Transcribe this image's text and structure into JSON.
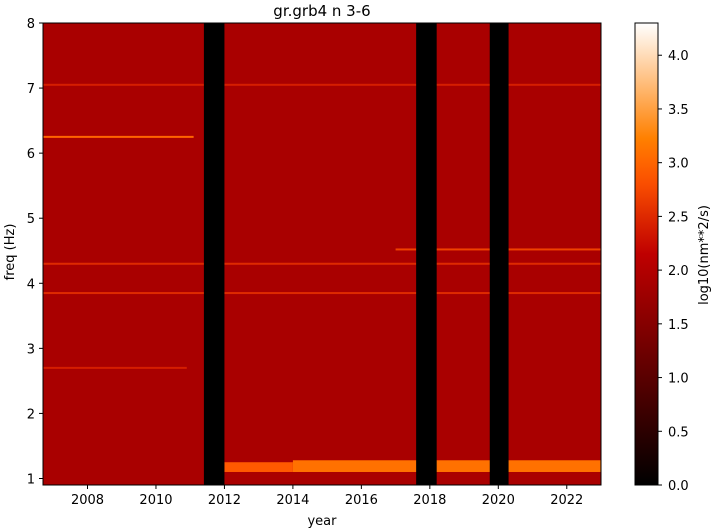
{
  "chart_data": {
    "type": "heatmap",
    "title": "gr.grb4 n 3-6",
    "xlabel": "year",
    "ylabel": "freq (Hz)",
    "xlim": [
      2006.7,
      2023.0
    ],
    "ylim": [
      0.9,
      8.0
    ],
    "x_ticks": [
      2008,
      2010,
      2012,
      2014,
      2016,
      2018,
      2020,
      2022
    ],
    "y_ticks": [
      1,
      2,
      3,
      4,
      5,
      6,
      7,
      8
    ],
    "colorbar": {
      "label": "log10(nm**2/s)",
      "range": [
        0.0,
        4.3
      ],
      "ticks": [
        0.0,
        0.5,
        1.0,
        1.5,
        2.0,
        2.5,
        3.0,
        3.5,
        4.0
      ],
      "colormap": "gist_heat",
      "colors": [
        "#000000",
        "#800000",
        "#ff8000",
        "#ffffff"
      ]
    },
    "background_level": 1.9,
    "data_gaps": [
      {
        "start": 2011.4,
        "end": 2012.0
      },
      {
        "start": 2017.6,
        "end": 2018.2
      },
      {
        "start": 2019.75,
        "end": 2020.3
      }
    ],
    "lines": [
      {
        "freq": 6.25,
        "start": 2006.7,
        "end": 2011.1,
        "level": 3.0
      },
      {
        "freq": 7.05,
        "start": 2006.7,
        "end": 2023.0,
        "level": 2.4
      },
      {
        "freq": 4.3,
        "start": 2006.7,
        "end": 2023.0,
        "level": 2.5
      },
      {
        "freq": 4.52,
        "start": 2017.0,
        "end": 2023.0,
        "level": 2.7
      },
      {
        "freq": 3.85,
        "start": 2006.7,
        "end": 2023.0,
        "level": 2.5
      },
      {
        "freq": 2.7,
        "start": 2006.7,
        "end": 2010.9,
        "level": 2.4
      }
    ],
    "bands": [
      {
        "fmin": 1.1,
        "fmax": 1.25,
        "start": 2012.0,
        "end": 2014.0,
        "level": 2.9
      },
      {
        "fmin": 1.1,
        "fmax": 1.28,
        "start": 2014.0,
        "end": 2023.0,
        "level": 3.1
      }
    ]
  }
}
